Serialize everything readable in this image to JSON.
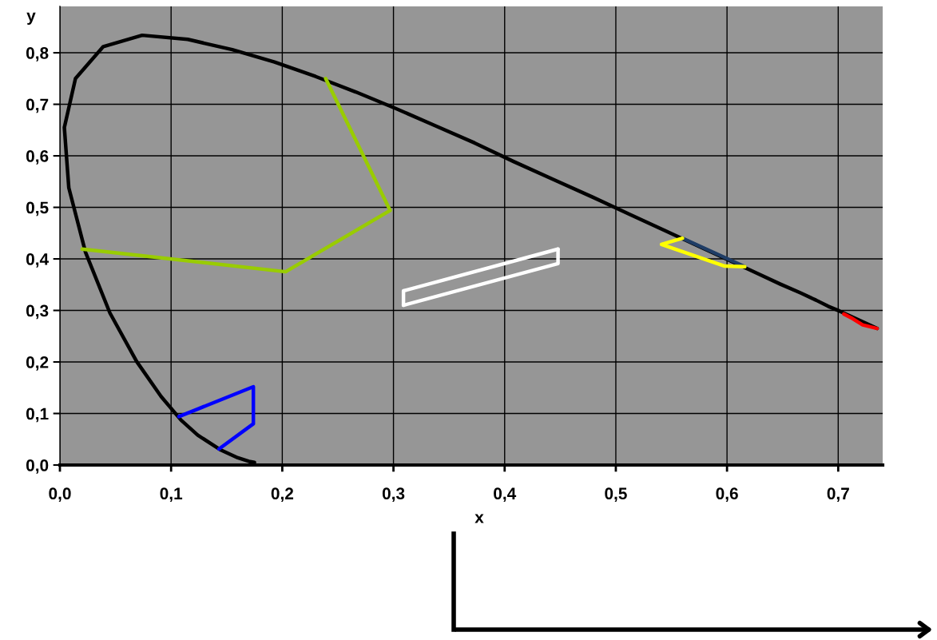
{
  "chart_data": {
    "type": "line",
    "xlabel": "x",
    "ylabel": "y",
    "xlim": [
      0,
      0.74
    ],
    "ylim": [
      0,
      0.89
    ],
    "xticks": [
      {
        "value": 0,
        "label": "0,0"
      },
      {
        "value": 0.1,
        "label": "0,1"
      },
      {
        "value": 0.2,
        "label": "0,2"
      },
      {
        "value": 0.3,
        "label": "0,3"
      },
      {
        "value": 0.4,
        "label": "0,4"
      },
      {
        "value": 0.5,
        "label": "0,5"
      },
      {
        "value": 0.6,
        "label": "0,6"
      },
      {
        "value": 0.7,
        "label": "0,7"
      }
    ],
    "yticks": [
      {
        "value": 0,
        "label": "0,0"
      },
      {
        "value": 0.1,
        "label": "0,1"
      },
      {
        "value": 0.2,
        "label": "0,2"
      },
      {
        "value": 0.3,
        "label": "0,3"
      },
      {
        "value": 0.4,
        "label": "0,4"
      },
      {
        "value": 0.5,
        "label": "0,5"
      },
      {
        "value": 0.6,
        "label": "0,6"
      },
      {
        "value": 0.7,
        "label": "0,7"
      },
      {
        "value": 0.8,
        "label": "0,8"
      }
    ],
    "grid": true,
    "series": [
      {
        "color": "#000000",
        "x": [
          0.175,
          0.17,
          0.16,
          0.144,
          0.124,
          0.109,
          0.091,
          0.069,
          0.045,
          0.023,
          0.008,
          0.004,
          0.014,
          0.039,
          0.074,
          0.115,
          0.155,
          0.193,
          0.23,
          0.266,
          0.302,
          0.337,
          0.373,
          0.408,
          0.444,
          0.479,
          0.512,
          0.544,
          0.575,
          0.603,
          0.627,
          0.648,
          0.666,
          0.68,
          0.691,
          0.701,
          0.719,
          0.735
        ],
        "values": [
          0.005,
          0.007,
          0.014,
          0.03,
          0.058,
          0.087,
          0.133,
          0.201,
          0.295,
          0.413,
          0.538,
          0.655,
          0.75,
          0.812,
          0.834,
          0.826,
          0.806,
          0.782,
          0.754,
          0.724,
          0.692,
          0.659,
          0.625,
          0.589,
          0.554,
          0.52,
          0.487,
          0.455,
          0.424,
          0.396,
          0.372,
          0.351,
          0.334,
          0.32,
          0.308,
          0.299,
          0.281,
          0.265
        ]
      },
      {
        "color": "#99cc00",
        "x": [
          0.02,
          0.203,
          0.297,
          0.239
        ],
        "values": [
          0.419,
          0.375,
          0.494,
          0.75
        ]
      },
      {
        "color": "#0000ff",
        "x": [
          0.107,
          0.174,
          0.174,
          0.143
        ],
        "values": [
          0.094,
          0.152,
          0.08,
          0.031
        ]
      },
      {
        "color": "#ffffff",
        "x": [
          0.309,
          0.448,
          0.448
        ],
        "values": [
          0.31,
          0.391,
          0.419
        ]
      },
      {
        "color": "#ffffff",
        "x": [
          0.448,
          0.309,
          0.309
        ],
        "values": [
          0.419,
          0.338,
          0.31
        ]
      },
      {
        "color": "#1f3d66",
        "x": [
          0.56,
          0.616
        ],
        "values": [
          0.44,
          0.385
        ]
      },
      {
        "color": "#ffff00",
        "x": [
          0.56,
          0.541,
          0.598,
          0.616
        ],
        "values": [
          0.44,
          0.428,
          0.386,
          0.385
        ]
      },
      {
        "color": "#ff0000",
        "x": [
          0.705,
          0.713,
          0.722,
          0.735
        ],
        "values": [
          0.293,
          0.284,
          0.272,
          0.265
        ]
      }
    ]
  }
}
